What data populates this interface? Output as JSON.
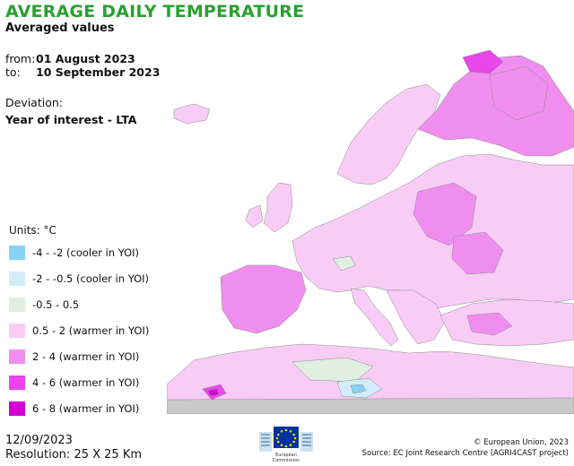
{
  "header": {
    "title": "AVERAGE DAILY TEMPERATURE",
    "subtitle": "Averaged values",
    "from_label": "from:",
    "from_date": "01 August 2023",
    "to_label": "to:",
    "to_date": "10 September 2023",
    "deviation_label": "Deviation:",
    "deviation_value": "Year of interest - LTA"
  },
  "legend": {
    "units": "Units: °C",
    "items": [
      {
        "label": "-4 - -2 (cooler in YOI)",
        "color": "#87d3f5"
      },
      {
        "label": "-2 - -0.5 (cooler in YOI)",
        "color": "#d2ecfa"
      },
      {
        "label": "-0.5 - 0.5",
        "color": "#e1efe0"
      },
      {
        "label": "0.5 - 2 (warmer in YOI)",
        "color": "#f9ccf7"
      },
      {
        "label": "2 - 4 (warmer in YOI)",
        "color": "#f08ef0"
      },
      {
        "label": "4 - 6 (warmer in YOI)",
        "color": "#ea44ec"
      },
      {
        "label": "6 - 8 (warmer in YOI)",
        "color": "#d400d4"
      }
    ]
  },
  "map": {
    "sea_color": "#ffffff",
    "border_color": "#8a8a8a",
    "outside_color": "#c8c8c8"
  },
  "footer": {
    "date": "12/09/2023",
    "resolution": "Resolution: 25 X 25 Km",
    "logo_text_1": "European",
    "logo_text_2": "Commission",
    "copyright": "© European Union, 2023",
    "source": "Source: EC Joint Research Centre (AGRI4CAST project)"
  }
}
